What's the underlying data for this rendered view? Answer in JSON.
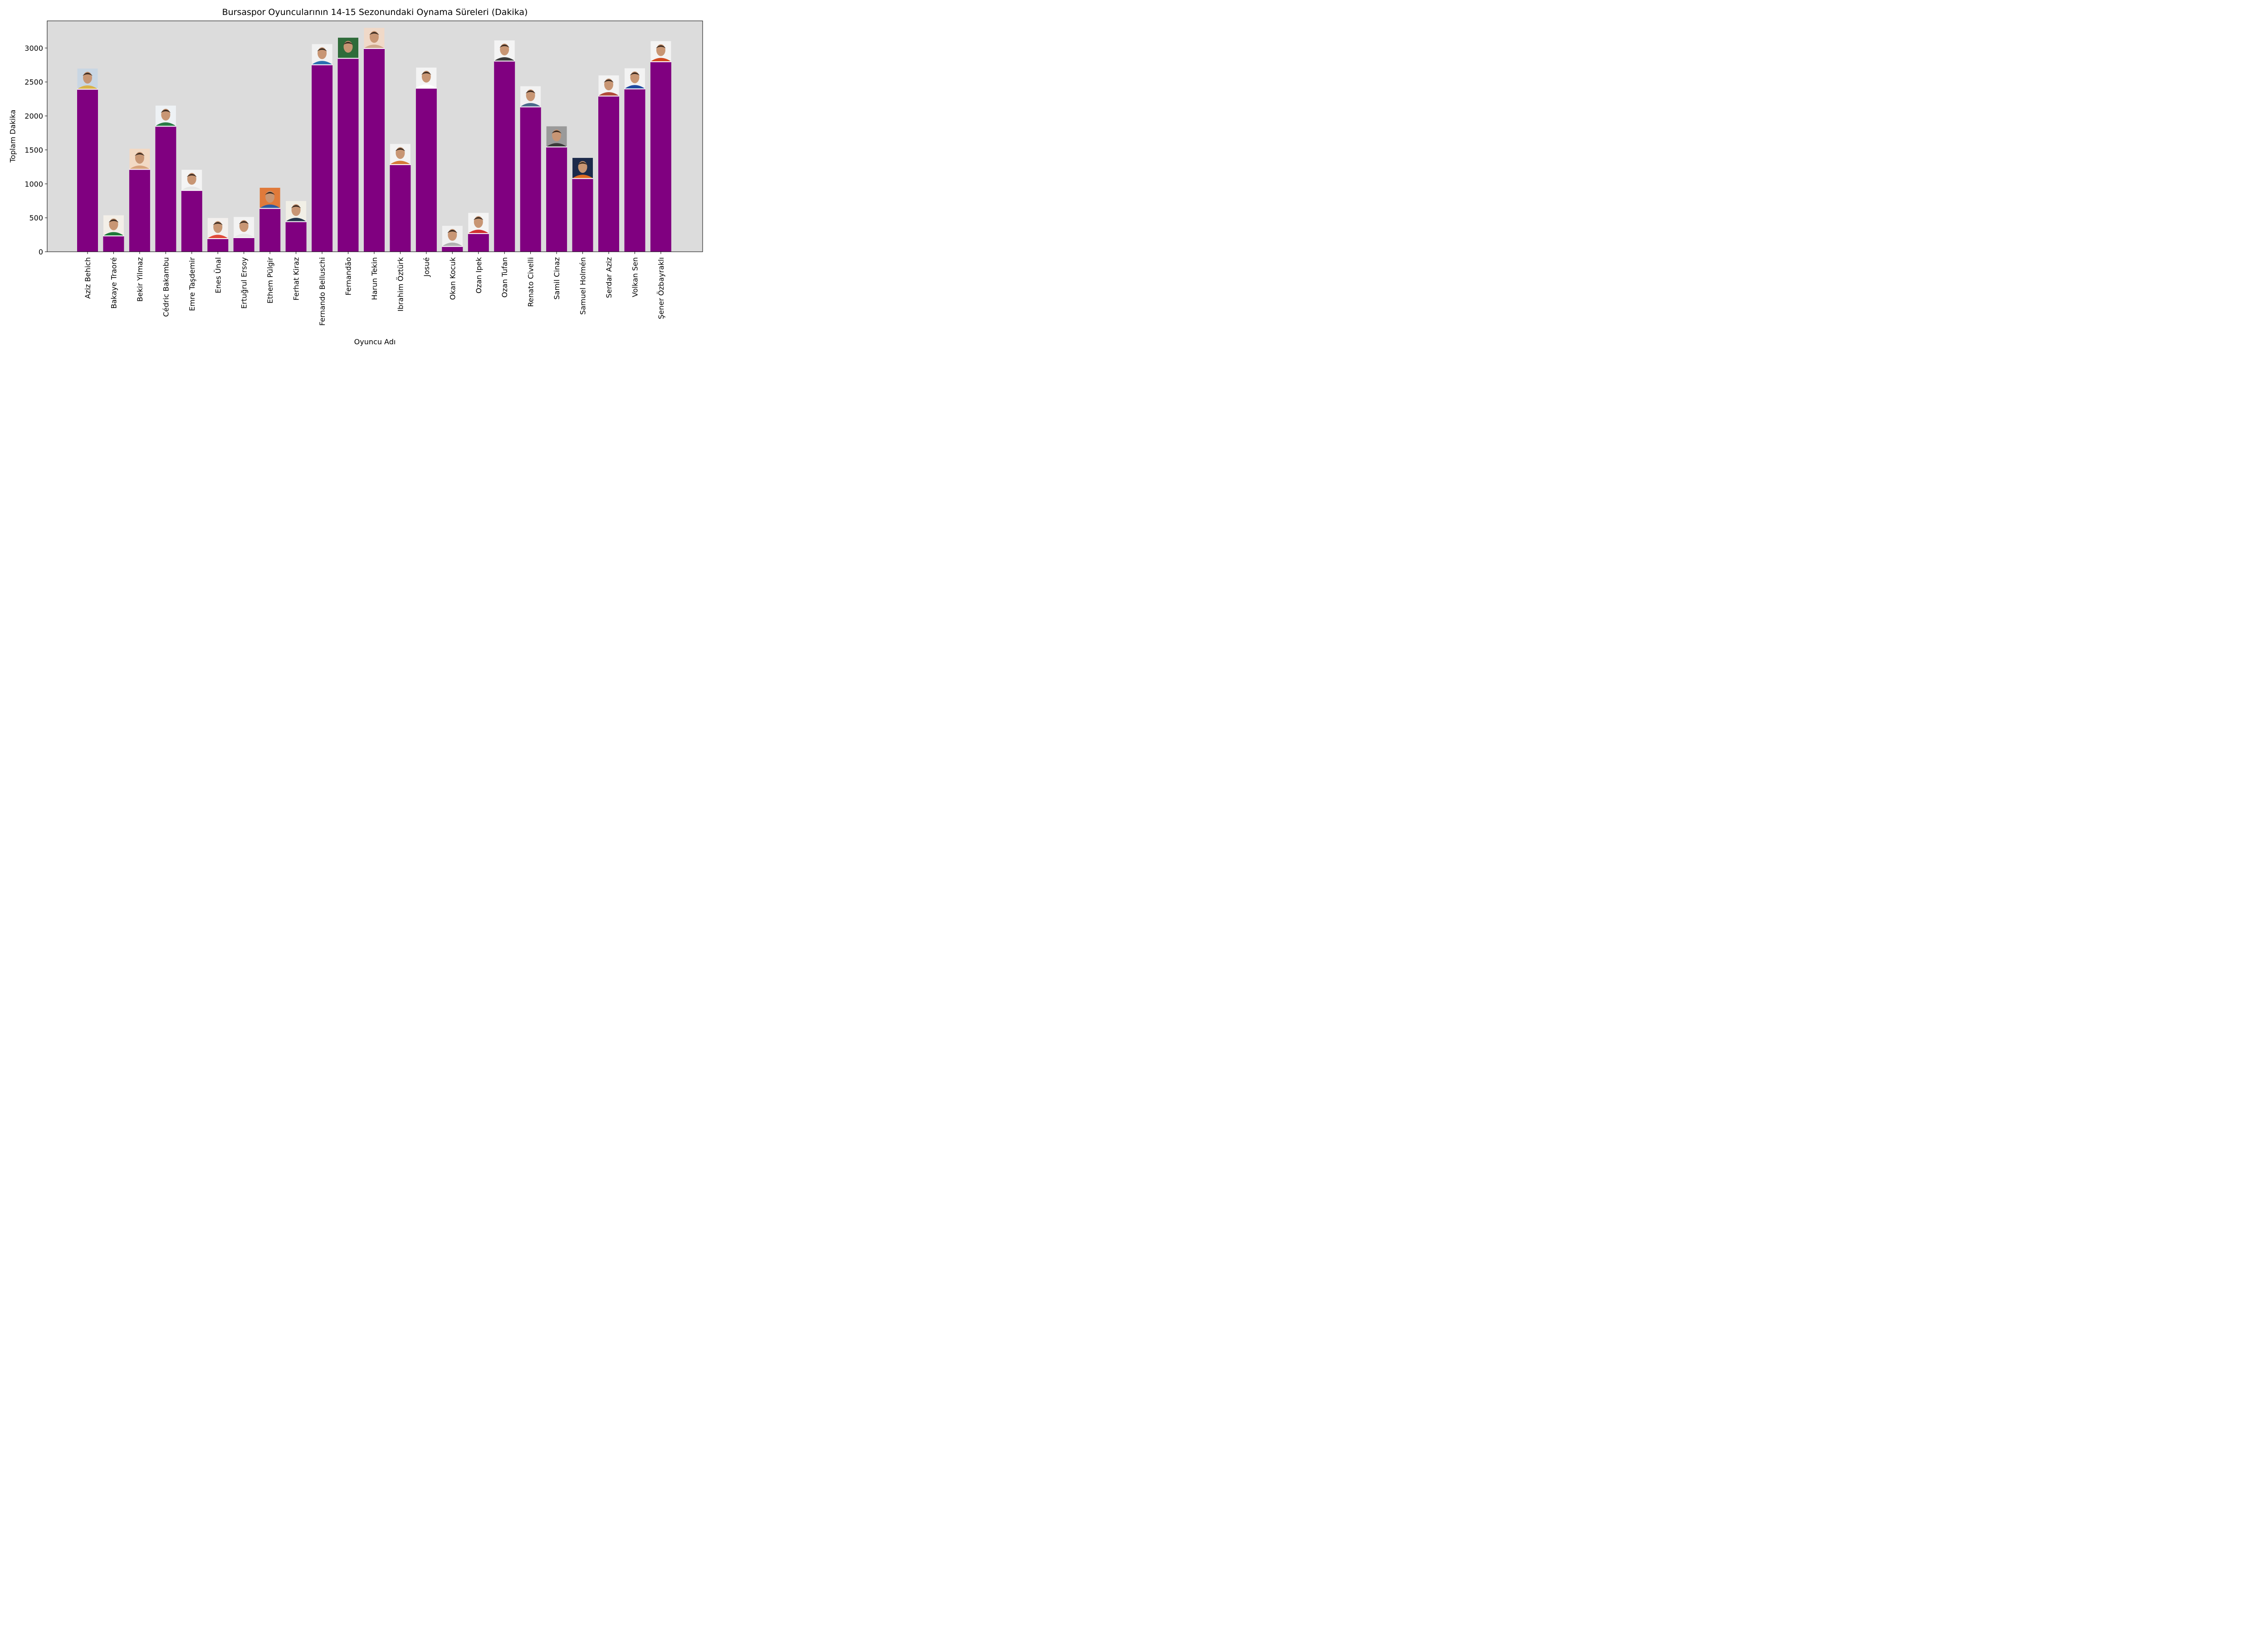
{
  "chart_data": {
    "type": "bar",
    "title": "Bursaspor Oyuncularının 14-15 Sezonundaki Oynama Süreleri (Dakika)",
    "xlabel": "Oyuncu Adı",
    "ylabel": "Toplam Dakika",
    "ylim": [
      0,
      3400
    ],
    "yticks": [
      0,
      500,
      1000,
      1500,
      2000,
      2500,
      3000
    ],
    "grid": false,
    "background_color": "#dcdcdc",
    "bar_color": "#800080",
    "categories": [
      "Aziz Behich",
      "Bakaye Traoré",
      "Bekir Yilmaz",
      "Cédric Bakambu",
      "Emre Taşdemir",
      "Enes Ünal",
      "Ertuğrul Ersoy",
      "Ethem Pülgir",
      "Ferhat Kiraz",
      "Fernando Belluschi",
      "Fernandão",
      "Harun Tekin",
      "Ibrahim Öztürk",
      "Josué",
      "Okan Kocuk",
      "Ozan Ipek",
      "Ozan Tufan",
      "Renato Civelli",
      "Samil Cinaz",
      "Samuel Holmén",
      "Serdar Aziz",
      "Volkan Sen",
      "Şener Özbayraklı"
    ],
    "values": [
      2390,
      230,
      1210,
      1845,
      900,
      190,
      205,
      635,
      440,
      2750,
      2845,
      2990,
      1280,
      2405,
      75,
      265,
      2805,
      2130,
      1540,
      1075,
      2290,
      2395,
      2795
    ],
    "bar_annotations": "player photo above each bar"
  }
}
